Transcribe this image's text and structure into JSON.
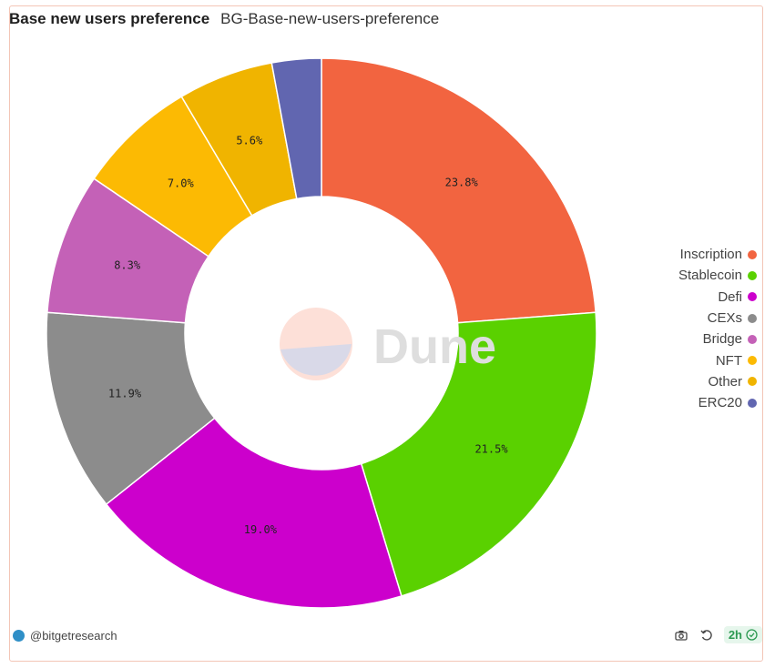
{
  "header": {
    "title": "Base new users preference",
    "subtitle": "BG-Base-new-users-preference"
  },
  "watermark": {
    "text": "Dune"
  },
  "chart_data": {
    "type": "pie",
    "subtype": "donut",
    "title": "Base new users preference",
    "subtitle": "BG-Base-new-users-preference",
    "legend_placement": "right",
    "series": [
      {
        "name": "Inscription",
        "value": 23.8,
        "label": "23.8%",
        "color": "#f26440"
      },
      {
        "name": "Stablecoin",
        "value": 21.5,
        "label": "21.5%",
        "color": "#5ad100"
      },
      {
        "name": "Defi",
        "value": 19.0,
        "label": "19.0%",
        "color": "#cc00cc"
      },
      {
        "name": "CEXs",
        "value": 11.9,
        "label": "11.9%",
        "color": "#8c8c8c"
      },
      {
        "name": "Bridge",
        "value": 8.3,
        "label": "8.3%",
        "color": "#c461b7"
      },
      {
        "name": "NFT",
        "value": 7.0,
        "label": "7.0%",
        "color": "#fcba03"
      },
      {
        "name": "Other",
        "value": 5.6,
        "label": "5.6%",
        "color": "#f0b400"
      },
      {
        "name": "ERC20",
        "value": 2.9,
        "label": "",
        "color": "#6166b0"
      }
    ]
  },
  "footer": {
    "handle": "@bitgetresearch",
    "age": "2h",
    "icons": [
      "camera-icon",
      "refresh-icon",
      "check-circle-icon"
    ]
  }
}
